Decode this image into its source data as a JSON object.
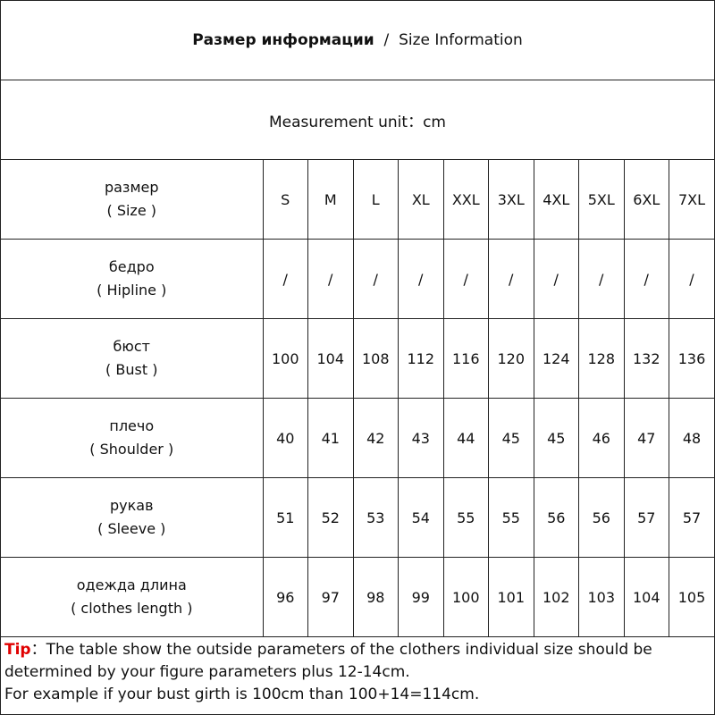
{
  "header": {
    "title_ru": "Размер информации",
    "separator": "/",
    "title_en": "Size Information"
  },
  "unit": "Measurement unit：cm",
  "table": {
    "header": {
      "label_ru": "размер",
      "label_en": "( Size )",
      "sizes": [
        "S",
        "M",
        "L",
        "XL",
        "XXL",
        "3XL",
        "4XL",
        "5XL",
        "6XL",
        "7XL"
      ]
    },
    "rows": [
      {
        "label_ru": "бедро",
        "label_en": "( Hipline )",
        "values": [
          "/",
          "/",
          "/",
          "/",
          "/",
          "/",
          "/",
          "/",
          "/",
          "/"
        ]
      },
      {
        "label_ru": "бюст",
        "label_en": "( Bust )",
        "values": [
          100,
          104,
          108,
          112,
          116,
          120,
          124,
          128,
          132,
          136
        ]
      },
      {
        "label_ru": "плечо",
        "label_en": "( Shoulder )",
        "values": [
          40,
          41,
          42,
          43,
          44,
          45,
          45,
          46,
          47,
          48
        ]
      },
      {
        "label_ru": "рукав",
        "label_en": "( Sleeve )",
        "values": [
          51,
          52,
          53,
          54,
          55,
          55,
          56,
          56,
          57,
          57
        ]
      },
      {
        "label_ru": "одежда  длина",
        "label_en": "( clothes length )",
        "values": [
          96,
          97,
          98,
          99,
          100,
          101,
          102,
          103,
          104,
          105
        ]
      }
    ]
  },
  "tip": {
    "label": "Tip",
    "text": "：The table show the outside parameters of the clothers individual size should be determined by your figure parameters plus 12-14cm.",
    "example": "For example if your bust girth is 100cm than 100+14=114cm."
  }
}
